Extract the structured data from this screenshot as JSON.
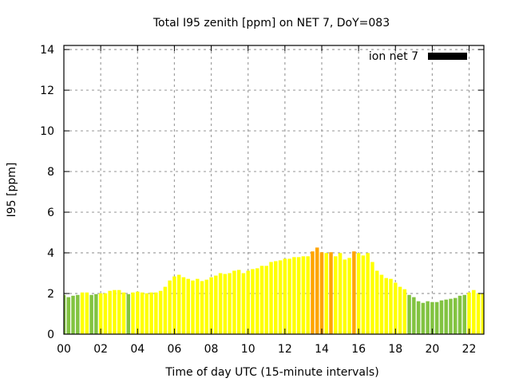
{
  "chart_data": {
    "type": "bar",
    "title": "Total I95 zenith [ppm] on NET 7, DoY=083",
    "xlabel": "Time of day UTC (15-minute intervals)",
    "ylabel": "I95 [ppm]",
    "xlim": [
      0,
      22.8
    ],
    "ylim": [
      0,
      14.2
    ],
    "grid": true,
    "x_ticks": [
      0,
      2,
      4,
      6,
      8,
      10,
      12,
      14,
      16,
      18,
      20,
      22
    ],
    "x_tick_labels": [
      "00",
      "02",
      "04",
      "06",
      "08",
      "10",
      "12",
      "14",
      "16",
      "18",
      "20",
      "22"
    ],
    "y_ticks": [
      0,
      2,
      4,
      6,
      8,
      10,
      12,
      14
    ],
    "y_tick_labels": [
      "0",
      "2",
      "4",
      "6",
      "8",
      "10",
      "12",
      "14"
    ],
    "bar_interval_hours": 0.25,
    "legend": {
      "label": "ion net 7",
      "color": "#000000",
      "placement": "top-right"
    },
    "color_thresholds": {
      "low_below": 2.0,
      "high_above": 4.0
    },
    "colors": {
      "low": "#82c341",
      "mid": "#ffff00",
      "high": "#ffa500"
    },
    "values": [
      1.93,
      1.82,
      1.89,
      1.93,
      2.05,
      2.05,
      1.93,
      1.97,
      2.01,
      2.01,
      2.13,
      2.17,
      2.17,
      2.05,
      1.97,
      2.05,
      2.09,
      2.05,
      2.01,
      2.05,
      2.05,
      2.13,
      2.33,
      2.64,
      2.84,
      2.92,
      2.8,
      2.72,
      2.64,
      2.72,
      2.61,
      2.68,
      2.8,
      2.88,
      3.0,
      2.96,
      3.0,
      3.12,
      3.16,
      3.0,
      3.12,
      3.2,
      3.24,
      3.36,
      3.36,
      3.55,
      3.59,
      3.63,
      3.71,
      3.71,
      3.79,
      3.79,
      3.83,
      3.83,
      4.07,
      4.26,
      4.03,
      3.99,
      4.03,
      3.83,
      3.99,
      3.67,
      3.75,
      4.07,
      3.99,
      3.87,
      3.99,
      3.55,
      3.12,
      2.92,
      2.76,
      2.72,
      2.53,
      2.33,
      2.21,
      1.93,
      1.82,
      1.62,
      1.54,
      1.62,
      1.58,
      1.58,
      1.66,
      1.7,
      1.74,
      1.78,
      1.89,
      1.93,
      2.05,
      2.17,
      2.01,
      2.01
    ]
  }
}
